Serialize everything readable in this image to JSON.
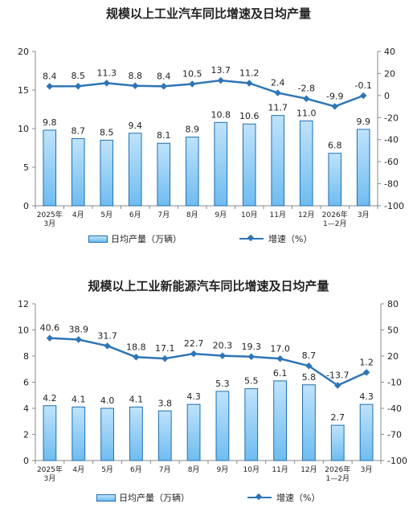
{
  "chart_data": [
    {
      "type": "bar+line",
      "title": "规模以上工业汽车同比增速及日均产量",
      "categories": [
        "2025年\n3月",
        "4月",
        "5月",
        "6月",
        "7月",
        "8月",
        "9月",
        "10月",
        "11月",
        "12月",
        "2026年\n1—2月",
        "3月"
      ],
      "series": [
        {
          "name": "日均产量（万辆）",
          "type": "bar",
          "axis": "left",
          "values": [
            9.8,
            8.7,
            8.5,
            9.4,
            8.1,
            8.9,
            10.8,
            10.6,
            11.7,
            11.0,
            6.8,
            9.9
          ],
          "labels": [
            "9.8",
            "8.7",
            "8.5",
            "9.4",
            "8.1",
            "8.9",
            "10.8",
            "10.6",
            "11.7",
            "11.0",
            "6.8",
            "9.9"
          ]
        },
        {
          "name": "增速（%）",
          "type": "line",
          "axis": "right",
          "values": [
            8.4,
            8.5,
            11.3,
            8.8,
            8.4,
            10.5,
            13.7,
            11.2,
            2.4,
            -2.8,
            -9.9,
            -0.1
          ],
          "labels": [
            "8.4",
            "8.5",
            "11.3",
            "8.8",
            "8.4",
            "10.5",
            "13.7",
            "11.2",
            "2.4",
            "-2.8",
            "-9.9",
            "-0.1"
          ]
        }
      ],
      "ylim_left": [
        0,
        20
      ],
      "yticks_left": [
        "0",
        "5",
        "10",
        "15",
        "20"
      ],
      "ylim_right": [
        -100,
        40
      ],
      "yticks_right": [
        "-100",
        "-80",
        "-60",
        "-40",
        "-20",
        "0",
        "20",
        "40"
      ],
      "legend": {
        "bar": "日均产量（万辆）",
        "line": "增速（%）",
        "placement": "bottom"
      },
      "colors": {
        "bar_top": "#bfe3fb",
        "bar_bottom": "#6fbcf0",
        "bar_stroke": "#1f6fb0",
        "line": "#2e75b6"
      },
      "grid": false
    },
    {
      "type": "bar+line",
      "title": "规模以上工业新能源汽车同比增速及日均产量",
      "categories": [
        "2025年\n3月",
        "4月",
        "5月",
        "6月",
        "7月",
        "8月",
        "9月",
        "10月",
        "11月",
        "12月",
        "2026年\n1—2月",
        "3月"
      ],
      "series": [
        {
          "name": "日均产量（万辆）",
          "type": "bar",
          "axis": "left",
          "values": [
            4.2,
            4.1,
            4.0,
            4.1,
            3.8,
            4.3,
            5.3,
            5.5,
            6.1,
            5.8,
            2.7,
            4.3
          ],
          "labels": [
            "4.2",
            "4.1",
            "4.0",
            "4.1",
            "3.8",
            "4.3",
            "5.3",
            "5.5",
            "6.1",
            "5.8",
            "2.7",
            "4.3"
          ]
        },
        {
          "name": "增速（%）",
          "type": "line",
          "axis": "right",
          "values": [
            40.6,
            38.9,
            31.7,
            18.8,
            17.1,
            22.7,
            20.3,
            19.3,
            17.0,
            8.7,
            -13.7,
            1.2
          ],
          "labels": [
            "40.6",
            "38.9",
            "31.7",
            "18.8",
            "17.1",
            "22.7",
            "20.3",
            "19.3",
            "17.0",
            "8.7",
            "-13.7",
            "1.2"
          ]
        }
      ],
      "ylim_left": [
        0,
        12
      ],
      "yticks_left": [
        "0",
        "2",
        "4",
        "6",
        "8",
        "10",
        "12"
      ],
      "ylim_right": [
        -100,
        80
      ],
      "yticks_right": [
        "-100",
        "-70",
        "-40",
        "-10",
        "20",
        "50",
        "80"
      ],
      "legend": {
        "bar": "日均产量（万辆）",
        "line": "增速（%）",
        "placement": "bottom"
      },
      "colors": {
        "bar_top": "#bfe3fb",
        "bar_bottom": "#6fbcf0",
        "bar_stroke": "#1f6fb0",
        "line": "#2e75b6"
      },
      "grid": false
    }
  ]
}
